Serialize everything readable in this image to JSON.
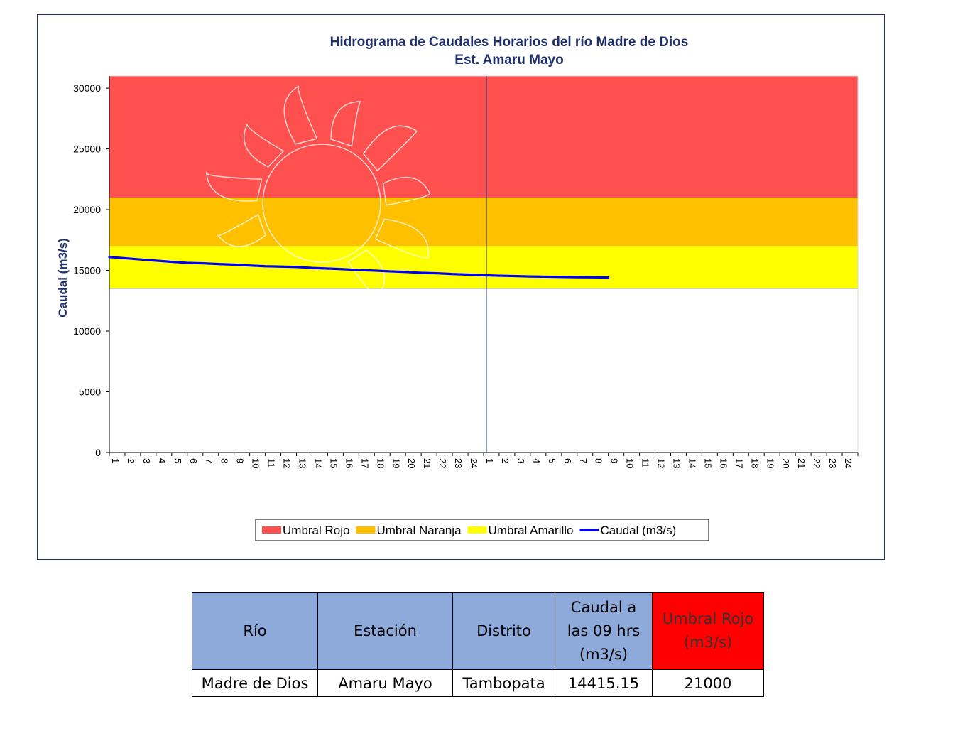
{
  "chart_data": {
    "type": "line",
    "title": "Hidrograma  de Caudales Horarios  del río Madre de Dios",
    "subtitle": "Est. Amaru Mayo",
    "ylabel": "Caudal (m3/s)",
    "xlabel": "",
    "ylim": [
      0,
      31000
    ],
    "y_ticks": [
      0,
      5000,
      10000,
      15000,
      20000,
      25000,
      30000
    ],
    "x_ticks": [
      "1",
      "2",
      "3",
      "4",
      "5",
      "6",
      "7",
      "8",
      "9",
      "10",
      "11",
      "12",
      "13",
      "14",
      "15",
      "16",
      "17",
      "18",
      "19",
      "20",
      "21",
      "22",
      "23",
      "24",
      "1",
      "2",
      "3",
      "4",
      "5",
      "6",
      "7",
      "8",
      "9",
      "10",
      "11",
      "12",
      "13",
      "14",
      "15",
      "16",
      "17",
      "18",
      "19",
      "20",
      "21",
      "22",
      "23",
      "24"
    ],
    "bands": [
      {
        "name": "Umbral Rojo",
        "from": 21000,
        "to": 31000,
        "color": "#ff5050"
      },
      {
        "name": "Umbral Naranja",
        "from": 17000,
        "to": 21000,
        "color": "#ffc000"
      },
      {
        "name": "Umbral Amarillo",
        "from": 13500,
        "to": 17000,
        "color": "#ffff00"
      }
    ],
    "series": [
      {
        "name": "Caudal (m3/s)",
        "color": "#0000ff",
        "values": [
          16100,
          16000,
          15900,
          15800,
          15700,
          15620,
          15580,
          15520,
          15470,
          15400,
          15340,
          15310,
          15280,
          15200,
          15150,
          15100,
          15030,
          14980,
          14920,
          14870,
          14800,
          14760,
          14700,
          14650,
          14600,
          14560,
          14530,
          14500,
          14480,
          14460,
          14440,
          14430,
          14415.15
        ]
      }
    ],
    "day_divider_after": 24,
    "grid": false,
    "legend_position": "bottom"
  },
  "table": {
    "headers": [
      "Río",
      "Estación",
      "Distrito",
      "Caudal a las 09 hrs (m3/s)",
      "Umbral Rojo (m3/s)"
    ],
    "rows": [
      [
        "Madre de Dios",
        "Amaru Mayo",
        "Tambopata",
        "14415.15",
        "21000"
      ]
    ]
  }
}
